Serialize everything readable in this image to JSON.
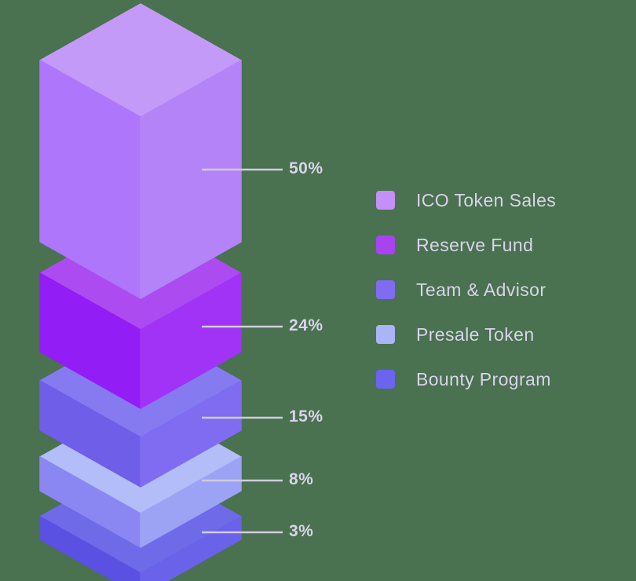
{
  "chart_data": {
    "type": "bar",
    "variant": "isometric-3d-stacked-blocks",
    "title": "",
    "orientation": "vertical-stack",
    "legend_position": "right",
    "background_color": "#4a7150",
    "label_color": "#d8d4ea",
    "leader_line_color": "#cfccdf",
    "categories": [
      "ICO Token Sales",
      "Reserve Fund",
      "Team & Advisor",
      "Presale Token",
      "Bounty Program"
    ],
    "values": [
      50,
      24,
      15,
      8,
      3
    ],
    "segments": [
      {
        "label": "ICO Token Sales",
        "value": 50,
        "percent_label": "50%",
        "swatch_color": "#c48ff7",
        "face_top": "#c49af8",
        "face_left": "#ae76fa",
        "face_right": "#b583f8"
      },
      {
        "label": "Reserve Fund",
        "value": 24,
        "percent_label": "24%",
        "swatch_color": "#a843f0",
        "face_top": "#ac4cf0",
        "face_left": "#931df5",
        "face_right": "#a133f6"
      },
      {
        "label": "Team & Advisor",
        "value": 15,
        "percent_label": "15%",
        "swatch_color": "#7f6cf2",
        "face_top": "#867af0",
        "face_left": "#6e5ee8",
        "face_right": "#7f6cf0"
      },
      {
        "label": "Presale Token",
        "value": 8,
        "percent_label": "8%",
        "swatch_color": "#a9b5f6",
        "face_top": "#b3bdf8",
        "face_left": "#8b87f2",
        "face_right": "#9ca3f5"
      },
      {
        "label": "Bounty Program",
        "value": 3,
        "percent_label": "3%",
        "swatch_color": "#6a64ee",
        "face_top": "#6f6ae8",
        "face_left": "#5a50e2",
        "face_right": "#6b62ea"
      }
    ]
  }
}
